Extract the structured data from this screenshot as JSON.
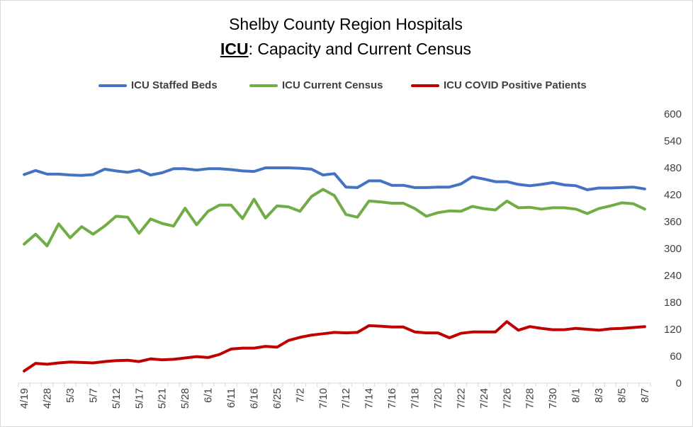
{
  "chart_data": {
    "type": "line",
    "title": "Shelby County Region Hospitals",
    "subtitle_bold": "ICU",
    "subtitle_rest": ": Capacity and Current Census",
    "xlabel": "",
    "ylabel": "",
    "ylim": [
      0,
      600
    ],
    "yticks": [
      0,
      60,
      120,
      180,
      240,
      300,
      360,
      420,
      480,
      540,
      600
    ],
    "y_axis_side": "right",
    "grid": false,
    "legend_position": "top",
    "x_tick_labels": [
      "4/19",
      "4/28",
      "5/3",
      "5/7",
      "5/12",
      "5/17",
      "5/21",
      "5/28",
      "6/1",
      "6/11",
      "6/16",
      "6/25",
      "7/2",
      "7/10",
      "7/12",
      "7/14",
      "7/16",
      "7/18",
      "7/20",
      "7/22",
      "7/24",
      "7/26",
      "7/28",
      "7/30",
      "8/1",
      "8/3",
      "8/5",
      "8/7"
    ],
    "series": [
      {
        "name": "ICU Staffed Beds",
        "color": "#4472c4",
        "values": [
          465,
          474,
          466,
          466,
          464,
          463,
          465,
          477,
          473,
          470,
          475,
          464,
          469,
          478,
          478,
          475,
          478,
          478,
          476,
          473,
          472,
          480,
          480,
          480,
          479,
          477,
          464,
          467,
          437,
          436,
          451,
          451,
          441,
          441,
          436,
          436,
          437,
          437,
          444,
          460,
          455,
          449,
          449,
          443,
          440,
          443,
          447,
          442,
          440,
          431,
          435,
          435,
          436,
          437,
          433
        ]
      },
      {
        "name": "ICU Current Census",
        "color": "#70ad47",
        "values": [
          310,
          332,
          306,
          355,
          324,
          349,
          332,
          350,
          372,
          370,
          334,
          366,
          356,
          350,
          390,
          353,
          383,
          397,
          397,
          367,
          410,
          368,
          395,
          393,
          383,
          416,
          432,
          418,
          376,
          370,
          406,
          404,
          401,
          401,
          389,
          372,
          380,
          384,
          383,
          394,
          389,
          386,
          406,
          391,
          392,
          388,
          391,
          391,
          388,
          378,
          389,
          395,
          402,
          400,
          388
        ]
      },
      {
        "name": "ICU COVID Positive Patients",
        "color": "#c00000",
        "values": [
          27,
          44,
          42,
          45,
          47,
          46,
          45,
          48,
          50,
          51,
          48,
          54,
          52,
          53,
          56,
          59,
          57,
          64,
          76,
          78,
          78,
          82,
          80,
          95,
          102,
          107,
          110,
          113,
          112,
          113,
          128,
          127,
          125,
          125,
          114,
          112,
          112,
          101,
          111,
          114,
          114,
          114,
          137,
          118,
          126,
          122,
          119,
          119,
          122,
          120,
          118,
          121,
          122,
          124,
          126
        ]
      }
    ]
  }
}
